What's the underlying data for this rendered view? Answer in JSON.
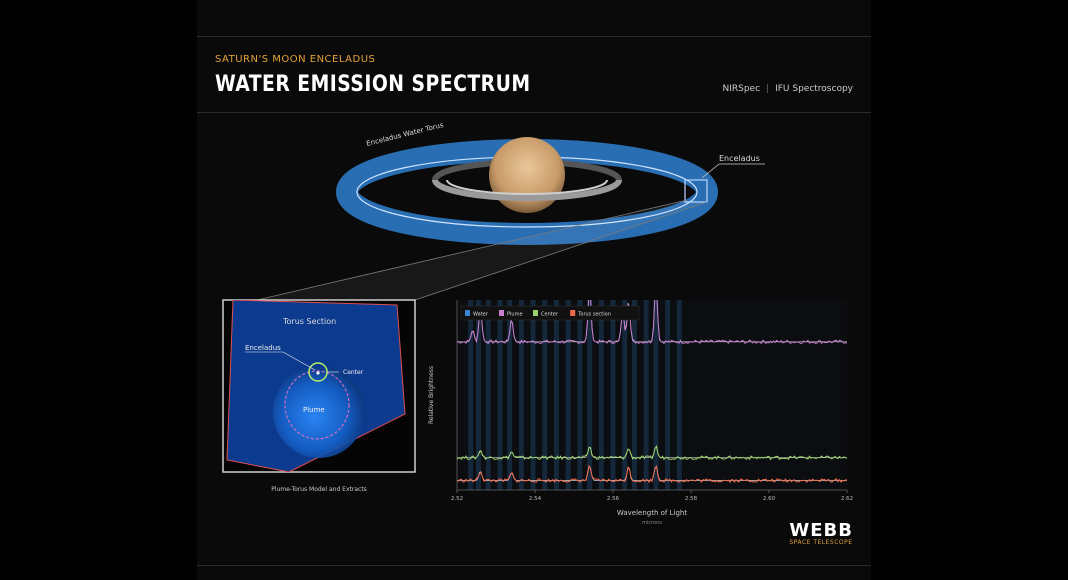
{
  "header": {
    "eyebrow": "SATURN'S MOON ENCELADUS",
    "title": "WATER EMISSION SPECTRUM",
    "instrument": "NIRSpec",
    "mode": "IFU Spectroscopy"
  },
  "labels": {
    "torus": "Enceladus Water Torus",
    "enceladus_top": "Enceladus",
    "inset_torus": "Torus Section",
    "inset_enceladus": "Enceladus",
    "inset_center": "Center",
    "inset_plume": "Plume",
    "inset_caption": "Plume-Torus Model and Extracts"
  },
  "logo": {
    "name": "WEBB",
    "sub": "SPACE TELESCOPE"
  },
  "colors": {
    "accent": "#e4a23a",
    "torus": "#3a86d4",
    "plume": "#c77fd0",
    "center": "#9bd36a",
    "torus_section": "#f06a4a",
    "model": "#ffffff"
  },
  "chart_data": {
    "type": "line",
    "xlabel": "Wavelength of Light",
    "xunit": "microns",
    "ylabel": "Relative Brightness",
    "xlim": [
      2.52,
      2.72
    ],
    "x_ticks": [
      "2.52",
      "2.54",
      "2.56",
      "2.58",
      "2.60",
      "2.62"
    ],
    "legend": [
      "Water",
      "Plume",
      "Center",
      "Torus section"
    ],
    "legend_position": "top-left",
    "series": [
      {
        "name": "Plume",
        "baseline": 0.78,
        "peaks": [
          [
            2.528,
            0.06
          ],
          [
            2.532,
            0.18
          ],
          [
            2.548,
            0.12
          ],
          [
            2.588,
            0.28
          ],
          [
            2.605,
            0.16
          ],
          [
            2.608,
            0.22
          ],
          [
            2.622,
            0.3
          ]
        ]
      },
      {
        "name": "Center",
        "baseline": 0.17,
        "peaks": [
          [
            2.532,
            0.04
          ],
          [
            2.548,
            0.03
          ],
          [
            2.588,
            0.06
          ],
          [
            2.608,
            0.05
          ],
          [
            2.622,
            0.06
          ]
        ]
      },
      {
        "name": "Torus section",
        "baseline": 0.05,
        "peaks": [
          [
            2.532,
            0.05
          ],
          [
            2.548,
            0.04
          ],
          [
            2.588,
            0.08
          ],
          [
            2.608,
            0.07
          ],
          [
            2.622,
            0.08
          ]
        ]
      }
    ],
    "water_line_bands": [
      2.527,
      2.531,
      2.536,
      2.542,
      2.547,
      2.553,
      2.559,
      2.565,
      2.571,
      2.577,
      2.583,
      2.588,
      2.594,
      2.6,
      2.606,
      2.611,
      2.617,
      2.622,
      2.628,
      2.634
    ]
  }
}
